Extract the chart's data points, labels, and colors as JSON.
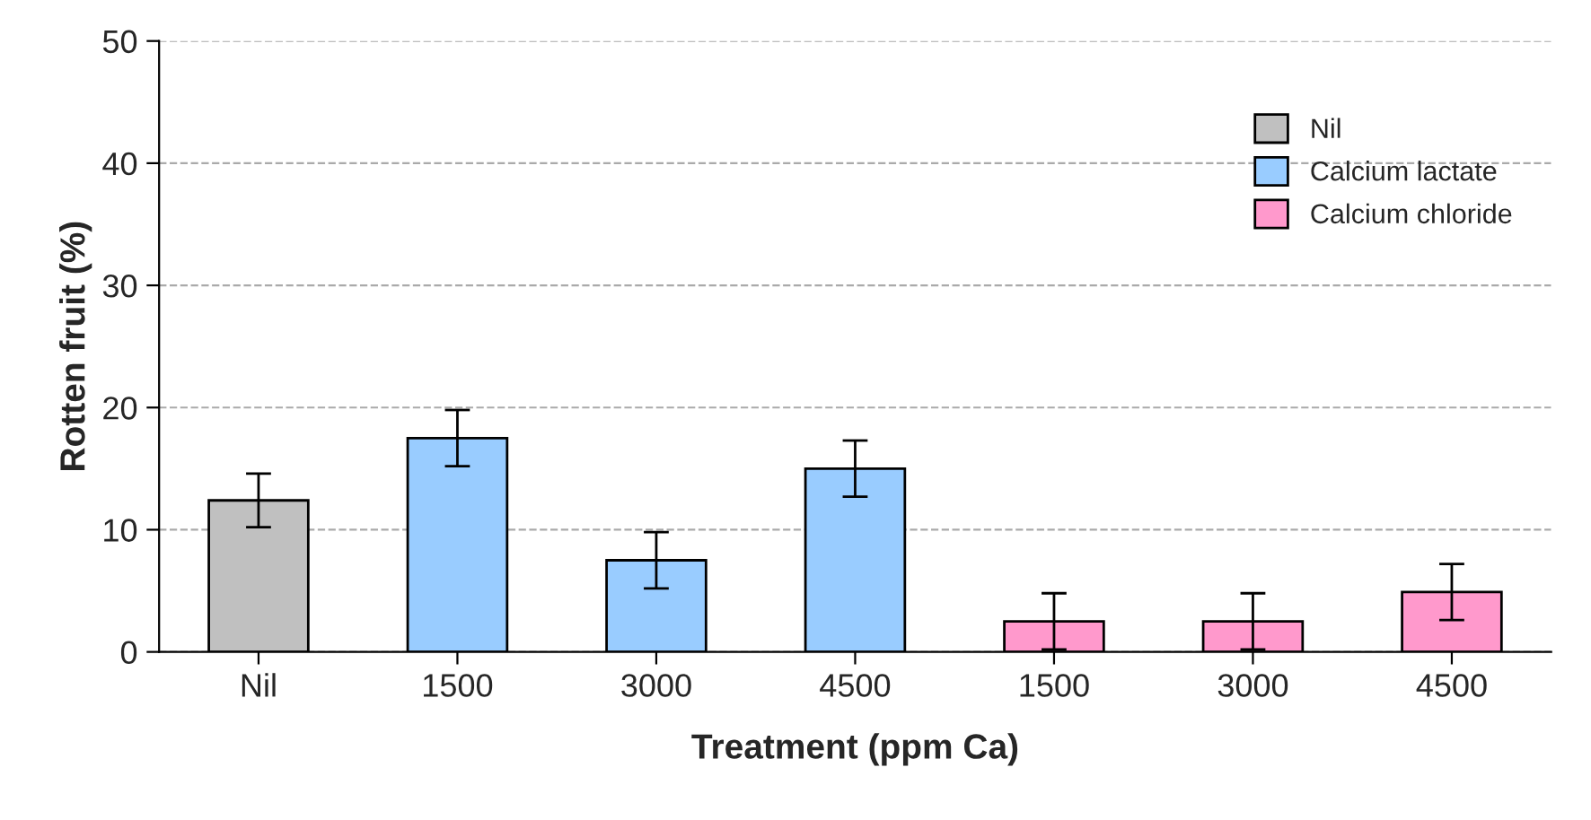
{
  "chart_data": {
    "type": "bar",
    "xlabel": "Treatment (ppm Ca)",
    "ylabel": "Rotten fruit (%)",
    "categories": [
      "Nil",
      "1500",
      "3000",
      "4500",
      "1500",
      "3000",
      "4500"
    ],
    "series": [
      {
        "name": "Nil",
        "color": "#c0c0c0",
        "values": [
          12.4,
          null,
          null,
          null,
          null,
          null,
          null
        ],
        "errors": [
          2.2,
          null,
          null,
          null,
          null,
          null,
          null
        ]
      },
      {
        "name": "Calcium lactate",
        "color": "#99ccff",
        "values": [
          null,
          17.5,
          7.5,
          15.0,
          null,
          null,
          null
        ],
        "errors": [
          null,
          2.3,
          2.3,
          2.3,
          null,
          null,
          null
        ]
      },
      {
        "name": "Calcium chloride",
        "color": "#ff99cc",
        "values": [
          null,
          null,
          null,
          null,
          2.5,
          2.5,
          4.9
        ],
        "errors": [
          null,
          null,
          null,
          null,
          2.3,
          2.3,
          2.3
        ]
      }
    ],
    "ylim": [
      0,
      50
    ],
    "yticks": [
      0,
      10,
      20,
      30,
      40,
      50
    ],
    "grid": "y",
    "legend": "top right"
  }
}
